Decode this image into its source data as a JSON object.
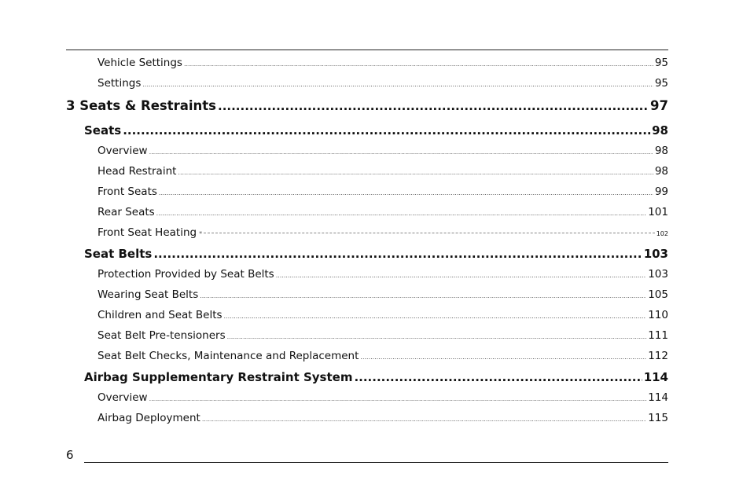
{
  "entries": [
    {
      "level": 2,
      "title": "Vehicle Settings",
      "page": "95"
    },
    {
      "level": 2,
      "title": "Settings",
      "page": "95"
    },
    {
      "level": 0,
      "title": "3  Seats & Restraints",
      "page": "97"
    },
    {
      "level": 1,
      "title": "Seats",
      "page": "98"
    },
    {
      "level": 2,
      "title": "Overview",
      "page": "98"
    },
    {
      "level": 2,
      "title": "Head Restraint",
      "page": "98"
    },
    {
      "level": 2,
      "title": "Front Seats",
      "page": "99"
    },
    {
      "level": 2,
      "title": "Rear Seats",
      "page": "101"
    },
    {
      "level": 2,
      "title": "Front Seat Heating",
      "marker": "*",
      "page": "102",
      "leader": "dashed"
    },
    {
      "level": 1,
      "title": "Seat Belts",
      "page": "103"
    },
    {
      "level": 2,
      "title": "Protection Provided by Seat Belts",
      "page": "103"
    },
    {
      "level": 2,
      "title": "Wearing Seat Belts",
      "page": "105"
    },
    {
      "level": 2,
      "title": "Children and Seat Belts",
      "page": "110"
    },
    {
      "level": 2,
      "title": "Seat Belt Pre-tensioners",
      "page": "111"
    },
    {
      "level": 2,
      "title": "Seat Belt Checks, Maintenance and Replacement",
      "page": "112"
    },
    {
      "level": 1,
      "title": "Airbag Supplementary Restraint System",
      "page": "114"
    },
    {
      "level": 2,
      "title": "Overview",
      "page": "114"
    },
    {
      "level": 2,
      "title": "Airbag Deployment",
      "page": "115"
    }
  ],
  "footer": {
    "page_number": "6"
  }
}
